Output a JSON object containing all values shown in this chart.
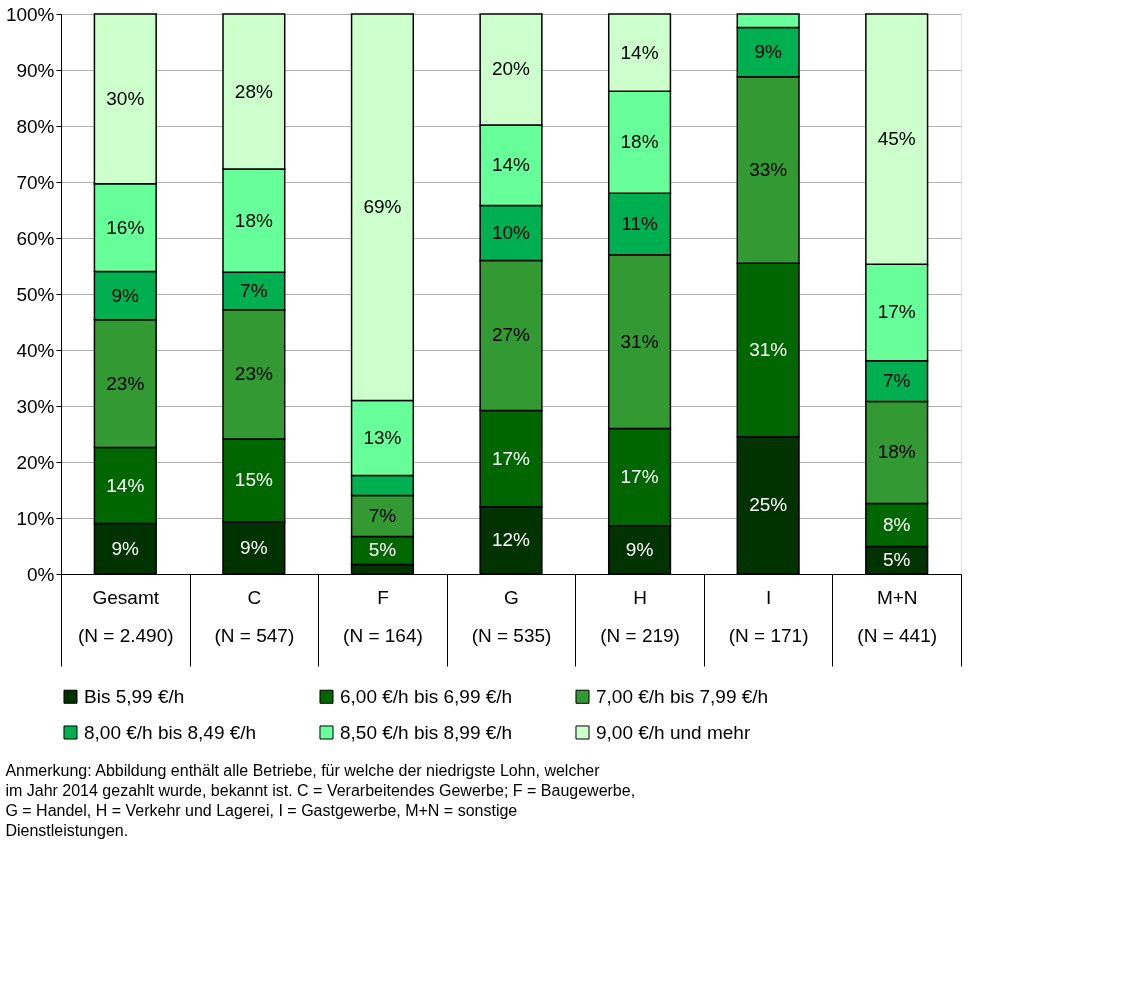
{
  "chart_data": {
    "type": "bar",
    "stacked": true,
    "categories": [
      "Gesamt\n(N = 2.490)",
      "C\n(N = 547)",
      "F\n(N = 164)",
      "G\n(N = 535)",
      "H\n(N = 219)",
      "I\n(N = 171)",
      "M+N\n(N = 441)"
    ],
    "series": [
      {
        "name": "Bis 5,99 €/h",
        "color": "#003300",
        "values": [
          9.0,
          9.3,
          1.7,
          12.0,
          8.6,
          24.5,
          4.9
        ],
        "value_labels": [
          "9%",
          "9%",
          null,
          "12%",
          "9%",
          "25%",
          "5%"
        ]
      },
      {
        "name": "6,00 €/h bis 6,99 €/h",
        "color": "#006600",
        "values": [
          13.6,
          14.8,
          5.0,
          17.2,
          17.4,
          31.0,
          7.7
        ],
        "value_labels": [
          "14%",
          "15%",
          "5%",
          "17%",
          "17%",
          "31%",
          "8%"
        ]
      },
      {
        "name": "7,00 €/h bis 7,99 €/h",
        "color": "#339933",
        "values": [
          22.8,
          23.1,
          7.3,
          26.8,
          31.0,
          33.3,
          18.2
        ],
        "value_labels": [
          "23%",
          "23%",
          "7%",
          "27%",
          "31%",
          "33%",
          "18%"
        ]
      },
      {
        "name": "8,00 €/h bis 8,49 €/h",
        "color": "#00b050",
        "values": [
          8.6,
          6.7,
          3.6,
          9.8,
          11.0,
          8.8,
          7.3
        ],
        "value_labels": [
          "9%",
          "7%",
          null,
          "10%",
          "11%",
          "9%",
          "7%"
        ]
      },
      {
        "name": "8,50 €/h bis 8,99 €/h",
        "color": "#66ff99",
        "values": [
          15.7,
          18.4,
          13.4,
          14.4,
          18.2,
          2.4,
          17.2
        ],
        "value_labels": [
          "16%",
          "18%",
          "13%",
          "14%",
          "18%",
          null,
          "17%"
        ]
      },
      {
        "name": "9,00 €/h und mehr",
        "color": "#ccffcc",
        "values": [
          30.3,
          27.7,
          69.0,
          19.8,
          13.8,
          null,
          44.7
        ],
        "value_labels": [
          "30%",
          "28%",
          "69%",
          "20%",
          "14%",
          null,
          "45%"
        ]
      }
    ],
    "ylim": [
      0,
      100
    ],
    "yticks": [
      {
        "value": 0,
        "label": "0%"
      },
      {
        "value": 10,
        "label": "10%"
      },
      {
        "value": 20,
        "label": "20%"
      },
      {
        "value": 30,
        "label": "30%"
      },
      {
        "value": 40,
        "label": "40%"
      },
      {
        "value": 50,
        "label": "50%"
      },
      {
        "value": 60,
        "label": "60%"
      },
      {
        "value": 70,
        "label": "70%"
      },
      {
        "value": 80,
        "label": "80%"
      },
      {
        "value": 90,
        "label": "90%"
      },
      {
        "value": 100,
        "label": "100%"
      }
    ],
    "grid": "y",
    "legend": "bottom",
    "annotations": [
      "Anmerkung: Abbildung enthält alle Betriebe, für welche der niedrigste Lohn, welcher im Jahr 2014 gezahlt wurde, bekannt ist. C = Verarbeitendes Gewerbe; F = Baugewerbe, G = Handel, H = Verkehr und Lagerei, I = Gastgewerbe, M+N = sonstige Dienstleistungen."
    ]
  }
}
